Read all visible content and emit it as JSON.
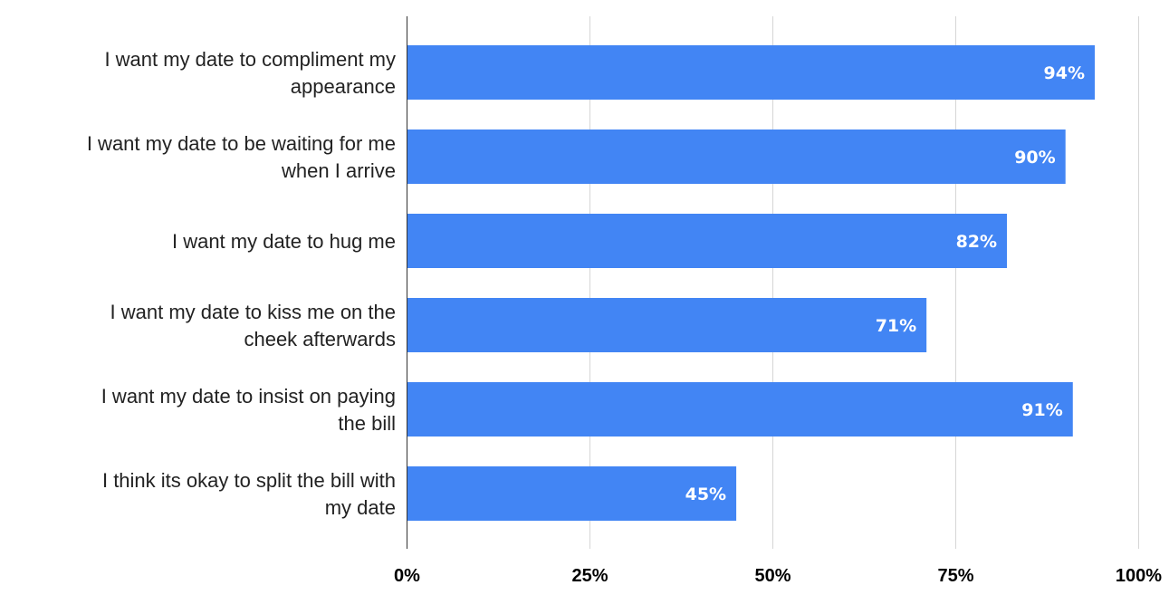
{
  "chart_data": {
    "type": "bar",
    "orientation": "horizontal",
    "categories": [
      [
        "I want my date to compliment my",
        "appearance"
      ],
      [
        "I want my date to be waiting for me",
        "when I arrive"
      ],
      [
        "I want my date to hug me"
      ],
      [
        "I want my date to kiss me on the",
        "cheek afterwards"
      ],
      [
        "I want my date to insist on paying",
        "the bill"
      ],
      [
        "I think its okay to split the bill with",
        "my date"
      ]
    ],
    "values": [
      94,
      90,
      82,
      71,
      91,
      45
    ],
    "value_labels": [
      "94%",
      "90%",
      "82%",
      "71%",
      "91%",
      "45%"
    ],
    "xlim": [
      0,
      100
    ],
    "x_ticks": [
      0,
      25,
      50,
      75,
      100
    ],
    "x_tick_labels": [
      "0%",
      "25%",
      "50%",
      "75%",
      "100%"
    ],
    "title": "",
    "xlabel": "",
    "ylabel": "",
    "grid": "vertical",
    "legend": "none",
    "bar_color": "#4285f4",
    "value_label_color": "#ffffff"
  }
}
